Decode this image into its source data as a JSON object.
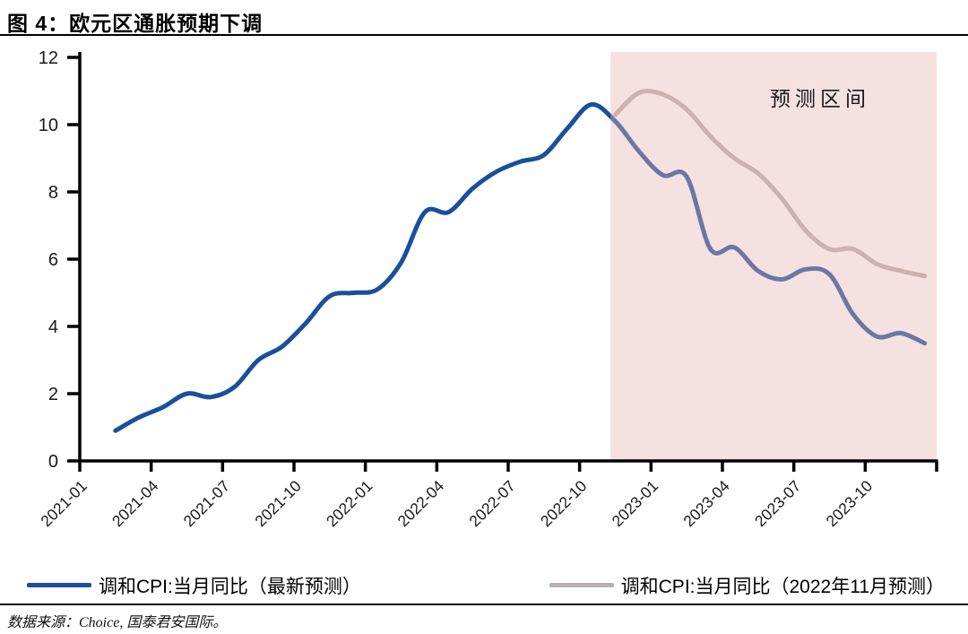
{
  "title": "图 4：欧元区通胀预期下调",
  "forecast_label": "预测区间",
  "legend": [
    {
      "label": "调和CPI:当月同比（最新预测）",
      "color": "#1a4f9c"
    },
    {
      "label": "调和CPI:当月同比（2022年11月预测）",
      "color": "#b8b1ae"
    }
  ],
  "footer": {
    "source_text": "数据来源：Choice, 国泰君安国际。"
  },
  "colors": {
    "latest_forecast_line": "#1a4f9c",
    "nov2022_forecast_line": "#b8b1ae",
    "forecast_region_fill": "rgba(230,180,178,0.40)",
    "axis": "#000000",
    "tick_label": "#1a1a1a"
  },
  "chart_data": {
    "type": "line",
    "title": "图 4：欧元区通胀预期下调",
    "xlabel": "",
    "ylabel": "",
    "ylim": [
      0,
      12
    ],
    "y_ticks": [
      0,
      2,
      4,
      6,
      8,
      10,
      12
    ],
    "grid": false,
    "legend_position": "bottom",
    "x_tick_labels": [
      "2021-01",
      "2021-04",
      "2021-07",
      "2021-10",
      "2022-01",
      "2022-04",
      "2022-07",
      "2022-10",
      "2023-01",
      "2023-04",
      "2023-07",
      "2023-10"
    ],
    "months": [
      "2021-01",
      "2021-02",
      "2021-03",
      "2021-04",
      "2021-05",
      "2021-06",
      "2021-07",
      "2021-08",
      "2021-09",
      "2021-10",
      "2021-11",
      "2021-12",
      "2022-01",
      "2022-02",
      "2022-03",
      "2022-04",
      "2022-05",
      "2022-06",
      "2022-07",
      "2022-08",
      "2022-09",
      "2022-10",
      "2022-11",
      "2022-12",
      "2023-01",
      "2023-02",
      "2023-03",
      "2023-04",
      "2023-05",
      "2023-06",
      "2023-07",
      "2023-08",
      "2023-09",
      "2023-10",
      "2023-11",
      "2023-12"
    ],
    "forecast_region": {
      "label": "预测区间",
      "start_month": "2022-11",
      "end_month": "2023-12",
      "fill": "rgba(230,180,178,0.40)"
    },
    "series": [
      {
        "name": "调和CPI:当月同比（最新预测）",
        "color": "#1a4f9c",
        "start_month": "2021-02",
        "start_index": 1,
        "values": [
          0.9,
          1.3,
          1.6,
          2.0,
          1.9,
          2.2,
          3.0,
          3.4,
          4.1,
          4.9,
          5.0,
          5.1,
          5.9,
          7.4,
          7.4,
          8.1,
          8.6,
          8.9,
          9.1,
          9.9,
          10.6,
          10.1,
          9.2,
          8.5,
          8.45,
          6.3,
          6.35,
          5.65,
          5.4,
          5.7,
          5.55,
          4.35,
          3.7,
          3.8,
          3.5
        ]
      },
      {
        "name": "调和CPI:当月同比（2022年11月预测）",
        "color": "#b8b1ae",
        "start_month": "2022-11",
        "start_index": 22,
        "values": [
          10.3,
          10.95,
          10.9,
          10.45,
          9.65,
          9.0,
          8.55,
          7.8,
          6.85,
          6.3,
          6.3,
          5.85,
          5.65,
          5.5
        ]
      }
    ]
  }
}
